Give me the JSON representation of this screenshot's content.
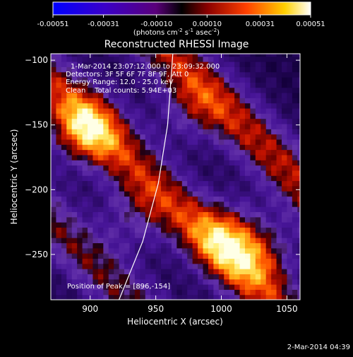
{
  "chart_data": {
    "type": "heatmap",
    "title": "Reconstructed RHESSI Image",
    "xlabel": "Heliocentric X (arcsec)",
    "ylabel": "Heliocentric Y (arcsec)",
    "xlim": [
      870,
      1060
    ],
    "ylim": [
      -285,
      -95
    ],
    "xticks": [
      900,
      950,
      1000,
      1050
    ],
    "yticks": [
      -100,
      -150,
      -200,
      -250
    ],
    "colorbar": {
      "ticks": [
        "-0.00051",
        "-0.00031",
        "-0.00010",
        "0.00010",
        "0.00031",
        "0.00051"
      ],
      "range": [
        -0.00051,
        0.00051
      ],
      "units_prefix": "(photons cm",
      "units_exp1": "-2",
      "units_mid": " s",
      "units_exp2": "-1",
      "units_mid2": " asec",
      "units_exp3": "-2",
      "units_suffix": ")"
    },
    "annotations": [
      "1-Mar-2014 23:07:12.000 to 23:09:32.000",
      "Detectors: 3F 5F 6F 7F 8F 9F, Att 0",
      "Energy Range: 12.0 - 25.0 keV",
      "Clean    Total counts: 5.94E+03"
    ],
    "peak_label": "Position of Peak = [896,-154]",
    "peak": [
      896,
      -154
    ],
    "timestamp": "2-Mar-2014 04:39",
    "limb_curve": [
      [
        922,
        -285
      ],
      [
        940,
        -240
      ],
      [
        952,
        -195
      ],
      [
        959,
        -150
      ],
      [
        963,
        -95
      ]
    ],
    "ridges": [
      {
        "intercept": -84,
        "amp": 1.0
      },
      {
        "intercept": -197,
        "amp": 0.95
      },
      {
        "intercept": -305,
        "amp": 0.8
      }
    ],
    "peaks": [
      {
        "x": 896,
        "y": -154,
        "amp": 1.0
      },
      {
        "x": 1003,
        "y": -236,
        "amp": 0.8
      },
      {
        "x": 1030,
        "y": -250,
        "amp": 0.7
      },
      {
        "x": 933,
        "y": -220,
        "amp": 0.5
      },
      {
        "x": 975,
        "y": -140,
        "amp": 0.45
      }
    ]
  }
}
